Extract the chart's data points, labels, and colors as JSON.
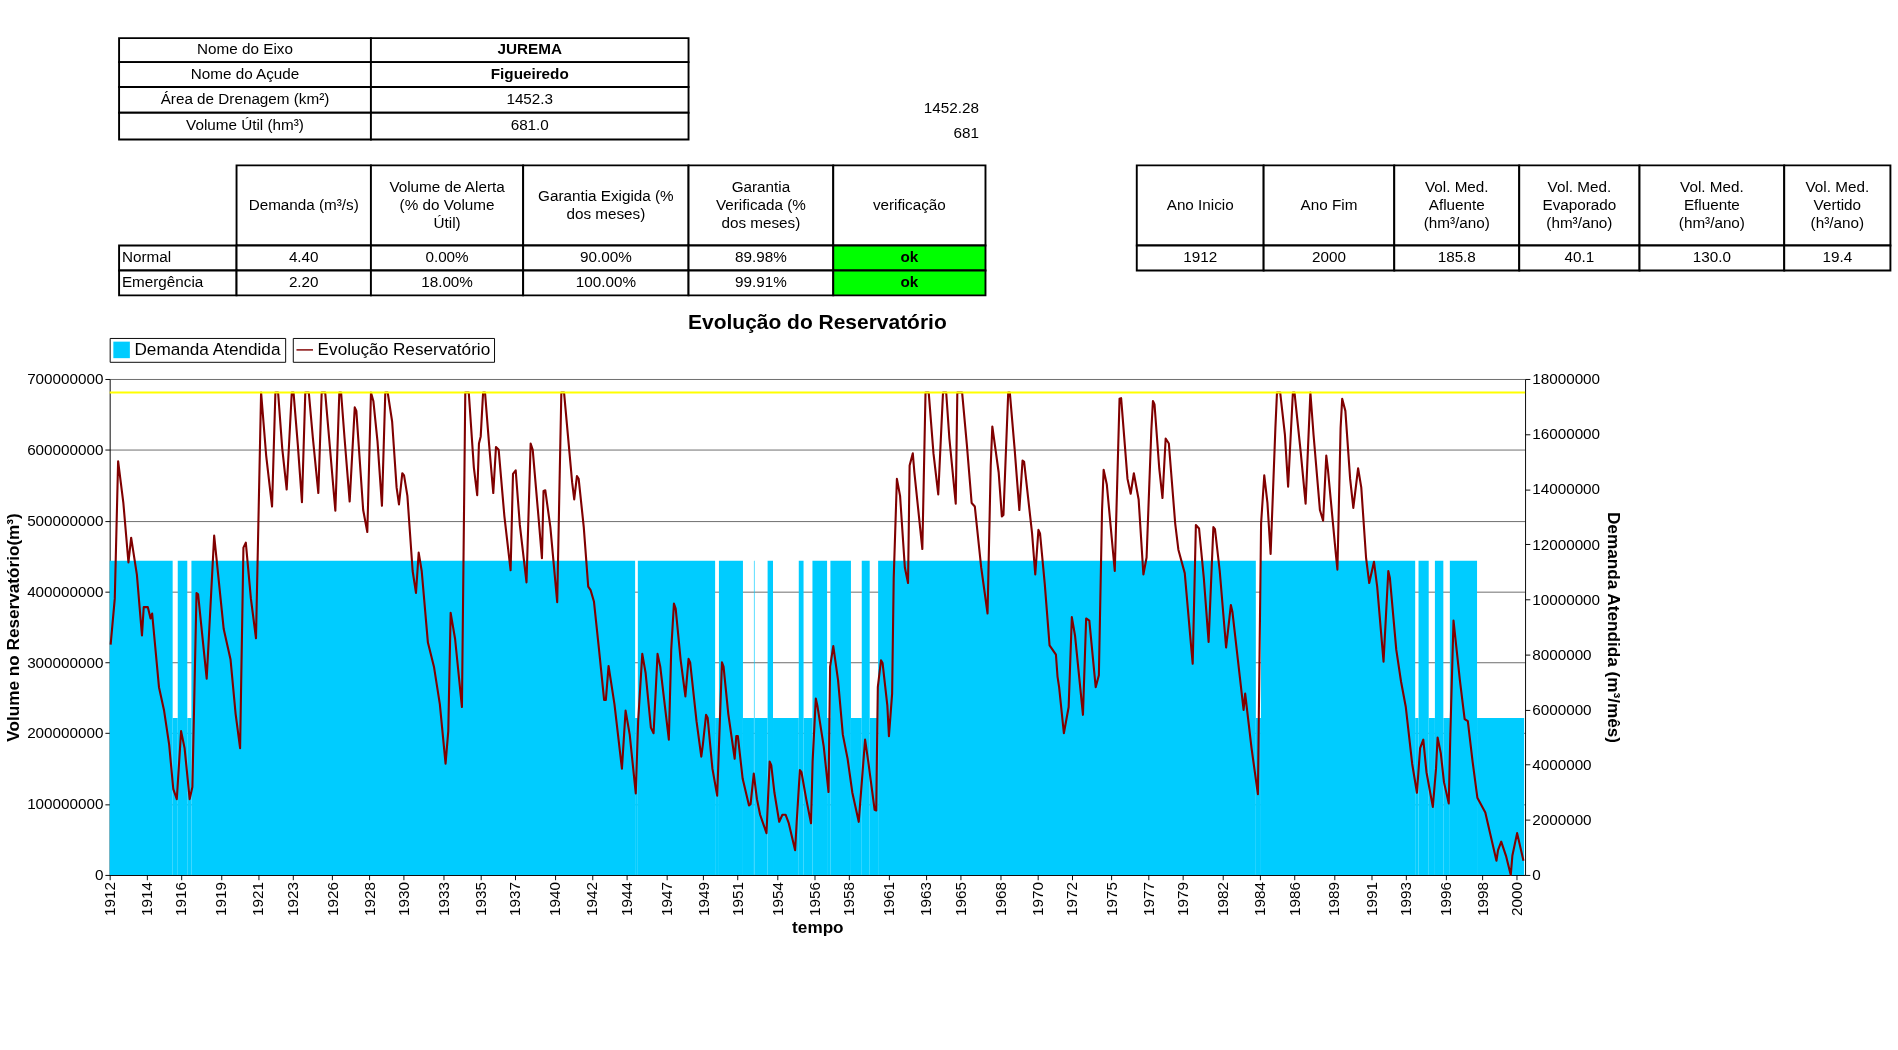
{
  "chart_data": [
    {
      "type": "other",
      "annotations": [
        "Nome do Eixo",
        "JUREMA",
        "Nome do Açude",
        "Figueiredo",
        "Área de Drenagem (km²)",
        "1452.3",
        "Volume Útil (hm³)",
        "681.0",
        "1452.28",
        "681",
        "Demanda (m³/s)",
        "Volume de Alerta (% do Volume Útil)",
        "Garantia Exigida (% dos meses)",
        "Garantia Verificada (% dos meses)",
        "verificação",
        "Normal",
        "4.40",
        "0.00%",
        "90.00%",
        "89.98%",
        "ok",
        "Emergência",
        "2.20",
        "18.00%",
        "100.00%",
        "99.91%",
        "ok",
        "Ano Inicio",
        "Ano Fim",
        "Vol. Med. Afluente (hm³/ano)",
        "Vol. Med. Evaporado (hm³/ano)",
        "Vol. Med. Efluente (hm³/ano)",
        "Vol. Med. Vertido (h³/ano)",
        "1912",
        "2000",
        "185.8",
        "40.1",
        "130.0",
        "19.4"
      ]
    },
    {
      "type": "line",
      "title": "Evolução do Reservatório",
      "xlabel": "tempo",
      "ylabel": "Volume no Reservatório(m³)",
      "y2label": "Demanda Atendida (m³/mês)",
      "xlim": [
        1912,
        2001
      ],
      "xticks": [
        1912,
        {
          "value": 1914.33,
          "label": "1914"
        },
        {
          "value": 1916.49,
          "label": "1916"
        },
        1919,
        {
          "value": 1921.33,
          "label": "1921"
        },
        {
          "value": 1923.49,
          "label": "1923"
        },
        1926,
        {
          "value": 1928.33,
          "label": "1928"
        },
        {
          "value": 1930.49,
          "label": "1930"
        },
        1933,
        {
          "value": 1935.33,
          "label": "1935"
        },
        {
          "value": 1937.49,
          "label": "1937"
        },
        1940,
        {
          "value": 1942.33,
          "label": "1942"
        },
        {
          "value": 1944.49,
          "label": "1944"
        },
        1947,
        {
          "value": 1949.33,
          "label": "1949"
        },
        {
          "value": 1951.49,
          "label": "1951"
        },
        1954,
        {
          "value": 1956.33,
          "label": "1956"
        },
        {
          "value": 1958.49,
          "label": "1958"
        },
        1961,
        {
          "value": 1963.33,
          "label": "1963"
        },
        {
          "value": 1965.49,
          "label": "1965"
        },
        1968,
        {
          "value": 1970.33,
          "label": "1970"
        },
        {
          "value": 1972.49,
          "label": "1972"
        },
        1975,
        {
          "value": 1977.33,
          "label": "1977"
        },
        {
          "value": 1979.49,
          "label": "1979"
        },
        1982,
        {
          "value": 1984.33,
          "label": "1984"
        },
        {
          "value": 1986.49,
          "label": "1986"
        },
        1989,
        {
          "value": 1991.33,
          "label": "1991"
        },
        {
          "value": 1993.49,
          "label": "1993"
        },
        1996,
        {
          "value": 1998.33,
          "label": "1998"
        },
        {
          "value": 2000.49,
          "label": "2000"
        }
      ],
      "ylim": [
        0,
        700000000
      ],
      "yticks": [
        0,
        100000000,
        200000000,
        300000000,
        400000000,
        500000000,
        600000000,
        700000000
      ],
      "y2lim": [
        0,
        18000000
      ],
      "y2ticks": [
        0,
        2000000,
        4000000,
        6000000,
        8000000,
        10000000,
        12000000,
        14000000,
        16000000,
        18000000
      ],
      "grid": "y",
      "legend": "top",
      "ref_lines": [
        {
          "axis": "y",
          "value": 681000000,
          "color": "#ffff00"
        }
      ],
      "series": [
        {
          "name": "Demanda Atendida",
          "type": "area",
          "axis": "y2",
          "color": "#00ccff",
          "x": [
            1912,
            1915.96,
            1916.28,
            1916.88,
            1917.14,
            1945.04,
            1945.21,
            1950.07,
            1950.31,
            1951.82,
            1952.51,
            1952.55,
            1953.37,
            1953.71,
            1955.33,
            1955.63,
            1956.19,
            1957.11,
            1957.32,
            1958.61,
            1959.29,
            1959.79,
            1960.32,
            1984.07,
            1984.39,
            1994.09,
            1994.3,
            1994.94,
            1995.33,
            1995.86,
            1996.27,
            1997.98,
            2000.94
          ],
          "values": [
            11400000,
            5700000,
            11400000,
            5700000,
            11400000,
            5700000,
            11400000,
            5700000,
            11400000,
            5700000,
            11400000,
            5700000,
            11400000,
            5700000,
            11400000,
            5700000,
            11400000,
            5700000,
            11400000,
            5700000,
            11400000,
            5700000,
            11400000,
            5700000,
            11400000,
            5700000,
            11400000,
            5700000,
            11400000,
            5700000,
            11400000,
            5700000,
            5700000
          ]
        },
        {
          "name": "Evolução Reservatório",
          "type": "line",
          "axis": "y",
          "color": "#800000",
          "x": [
            1912.06,
            1912.32,
            1912.53,
            1912.86,
            1913.18,
            1913.35,
            1913.71,
            1914.03,
            1914.14,
            1914.4,
            1914.57,
            1914.67,
            1915.1,
            1915.42,
            1915.74,
            1916,
            1916.22,
            1916.49,
            1916.71,
            1917.03,
            1917.2,
            1917.46,
            1917.56,
            1918.1,
            1918.57,
            1919.17,
            1919.6,
            1919.92,
            1920.2,
            1920.41,
            1920.56,
            1920.88,
            1921.2,
            1921.52,
            1921.84,
            1922.21,
            1922.42,
            1922.59,
            1922.85,
            1923.13,
            1923.45,
            1923.56,
            1923.83,
            1924.09,
            1924.3,
            1924.52,
            1924.78,
            1925.12,
            1925.33,
            1925.55,
            1925.8,
            1926.19,
            1926.44,
            1926.55,
            1926.77,
            1927.09,
            1927.41,
            1927.51,
            1927.94,
            1928.2,
            1928.43,
            1928.58,
            1928.84,
            1929.12,
            1929.33,
            1929.48,
            1929.76,
            1930.04,
            1930.19,
            1930.4,
            1930.51,
            1930.72,
            1931.05,
            1931.26,
            1931.43,
            1931.62,
            1932.01,
            1932.39,
            1932.76,
            1933.12,
            1933.29,
            1933.44,
            1933.72,
            1934.15,
            1934.36,
            1934.58,
            1934.9,
            1935.11,
            1935.22,
            1935.33,
            1935.48,
            1935.6,
            1935.86,
            1936.12,
            1936.29,
            1936.46,
            1936.82,
            1937.21,
            1937.36,
            1937.53,
            1937.79,
            1938.21,
            1938.47,
            1938.6,
            1938.96,
            1939.18,
            1939.28,
            1939.39,
            1939.71,
            1940.14,
            1940.4,
            1940.57,
            1941.08,
            1941.21,
            1941.38,
            1941.49,
            1941.81,
            1942.09,
            1942.24,
            1942.45,
            1942.77,
            1943.09,
            1943.2,
            1943.37,
            1943.74,
            1944.21,
            1944.44,
            1944.7,
            1945.08,
            1945.23,
            1945.49,
            1945.7,
            1946.03,
            1946.2,
            1946.45,
            1946.62,
            1947.16,
            1947.31,
            1947.48,
            1947.59,
            1947.9,
            1948.2,
            1948.4,
            1948.5,
            1948.9,
            1949.2,
            1949.3,
            1949.5,
            1949.6,
            1949.9,
            1950.2,
            1950.5,
            1950.6,
            1950.9,
            1951.3,
            1951.4,
            1951.5,
            1951.8,
            1952.2,
            1952.3,
            1952.5,
            1952.7,
            1952.9,
            1953.3,
            1953.5,
            1953.6,
            1953.8,
            1954.1,
            1954.3,
            1954.5,
            1954.7,
            1955.1,
            1955.2,
            1955.4,
            1955.5,
            1955.8,
            1956.1,
            1956.2,
            1956.4,
            1956.5,
            1956.9,
            1957.2,
            1957.3,
            1957.5,
            1957.8,
            1958.1,
            1958.4,
            1958.7,
            1959.1,
            1959.5,
            1959.7,
            1960.1,
            1960.2,
            1960.3,
            1960.5,
            1960.6,
            1960.9,
            1961,
            1961.2,
            1961.3,
            1961.5,
            1961.7,
            1962,
            1962.2,
            1962.3,
            1962.5,
            1962.6,
            1963.1,
            1963.3,
            1963.5,
            1963.8,
            1964.1,
            1964.4,
            1964.6,
            1964.8,
            1965.2,
            1965.3,
            1965.6,
            1965.9,
            1966.2,
            1966.4,
            1966.8,
            1967.2,
            1967.4,
            1967.5,
            1967.9,
            1968.1,
            1968.2,
            1968.5,
            1968.6,
            1968.9,
            1969.2,
            1969.4,
            1969.5,
            1970,
            1970.2,
            1970.4,
            1970.5,
            1970.8,
            1971.1,
            1971.5,
            1971.6,
            1971.7,
            1972,
            1972.3,
            1972.5,
            1972.7,
            1973.2,
            1973.4,
            1973.6,
            1974,
            1974.2,
            1974.4,
            1974.5,
            1974.7,
            1975.2,
            1975.5,
            1975.6,
            1976,
            1976.2,
            1976.4,
            1976.7,
            1977,
            1977.2,
            1977.5,
            1977.6,
            1977.7,
            1978,
            1978.2,
            1978.4,
            1978.6,
            1979,
            1979.2,
            1979.6,
            1980,
            1980.1,
            1980.3,
            1980.5,
            1980.8,
            1981.1,
            1981.4,
            1981.5,
            1981.8,
            1982.2,
            1982.5,
            1982.6,
            1983.3,
            1983.4,
            1983.8,
            1984.2,
            1984.4,
            1984.6,
            1984.8,
            1985,
            1985.3,
            1985.4,
            1985.6,
            1985.9,
            1986.1,
            1986.4,
            1986.5,
            1986.9,
            1987.2,
            1987.5,
            1987.7,
            1988.1,
            1988.3,
            1988.5,
            1988.6,
            1989.1,
            1989.2,
            1989.4,
            1989.5,
            1989.7,
            1990,
            1990.2,
            1990.5,
            1990.7,
            1991,
            1991.2,
            1991.5,
            1991.7,
            1992.1,
            1992.4,
            1992.5,
            1992.9,
            1993.2,
            1993.5,
            1993.9,
            1994.2,
            1994.4,
            1994.6,
            1994.8,
            1995.2,
            1995.4,
            1995.5,
            1995.7,
            1995.9,
            1996.2,
            1996.3,
            1996.5,
            1996.9,
            1997.2,
            1997.4,
            1997.7,
            1998,
            1998.5,
            1998.8,
            1999.2,
            1999.3,
            1999.5,
            1999.8,
            2000.1,
            2000.2,
            2000.5,
            2000.9
          ],
          "values": [
            325000000,
            390000000,
            584000000,
            525000000,
            441000000,
            476000000,
            424000000,
            338000000,
            378000000,
            378000000,
            362000000,
            369000000,
            265000000,
            232000000,
            184000000,
            121000000,
            107000000,
            203000000,
            179000000,
            107000000,
            124000000,
            398000000,
            396000000,
            277000000,
            479000000,
            347000000,
            304000000,
            227000000,
            179000000,
            462000000,
            469000000,
            390000000,
            334000000,
            681000000,
            592000000,
            520000000,
            681000000,
            681000000,
            602000000,
            544000000,
            681000000,
            681000000,
            607000000,
            526000000,
            681000000,
            681000000,
            616000000,
            539000000,
            681000000,
            681000000,
            616000000,
            514000000,
            681000000,
            681000000,
            616000000,
            527000000,
            660000000,
            655000000,
            515000000,
            484000000,
            681000000,
            669000000,
            612000000,
            521000000,
            681000000,
            681000000,
            640000000,
            547000000,
            523000000,
            567000000,
            564000000,
            535000000,
            429000000,
            398000000,
            455000000,
            429000000,
            328000000,
            294000000,
            241000000,
            157000000,
            203000000,
            370000000,
            333000000,
            237000000,
            681000000,
            681000000,
            575000000,
            536000000,
            609000000,
            619000000,
            681000000,
            681000000,
            607000000,
            539000000,
            604000000,
            600000000,
            506000000,
            430000000,
            566000000,
            571000000,
            494000000,
            413000000,
            609000000,
            600000000,
            506000000,
            447000000,
            542000000,
            543000000,
            491000000,
            385000000,
            681000000,
            681000000,
            554000000,
            530000000,
            563000000,
            559000000,
            491000000,
            407000000,
            402000000,
            386000000,
            318000000,
            247000000,
            247000000,
            295000000,
            241000000,
            150000000,
            232000000,
            198000000,
            115000000,
            217000000,
            312000000,
            285000000,
            208000000,
            200000000,
            312000000,
            294000000,
            191000000,
            318000000,
            383000000,
            376000000,
            304000000,
            252000000,
            305000000,
            300000000,
            217000000,
            167000000,
            184000000,
            226000000,
            222000000,
            150000000,
            112000000,
            300000000,
            294000000,
            227000000,
            164000000,
            196000000,
            196000000,
            136000000,
            98000000,
            100000000,
            143000000,
            107000000,
            85000000,
            59000000,
            160000000,
            155000000,
            116000000,
            75000000,
            85000000,
            85000000,
            73000000,
            35000000,
            75000000,
            148000000,
            145000000,
            107000000,
            73000000,
            160000000,
            249000000,
            239000000,
            181000000,
            117000000,
            294000000,
            323000000,
            275000000,
            198000000,
            164000000,
            116000000,
            75000000,
            191000000,
            160000000,
            92000000,
            91000000,
            265000000,
            303000000,
            299000000,
            239000000,
            196000000,
            256000000,
            419000000,
            559000000,
            535000000,
            434000000,
            412000000,
            578000000,
            595000000,
            568000000,
            460000000,
            681000000,
            681000000,
            595000000,
            537000000,
            681000000,
            681000000,
            616000000,
            524000000,
            681000000,
            681000000,
            607000000,
            525000000,
            520000000,
            434000000,
            369000000,
            578000000,
            633000000,
            568000000,
            506000000,
            508000000,
            681000000,
            681000000,
            602000000,
            515000000,
            585000000,
            583000000,
            482000000,
            424000000,
            487000000,
            482000000,
            410000000,
            324000000,
            311000000,
            280000000,
            265000000,
            200000000,
            237000000,
            364000000,
            338000000,
            226000000,
            362000000,
            359000000,
            265000000,
            282000000,
            515000000,
            572000000,
            551000000,
            429000000,
            672000000,
            673000000,
            559000000,
            538000000,
            567000000,
            530000000,
            424000000,
            448000000,
            628000000,
            669000000,
            664000000,
            573000000,
            532000000,
            616000000,
            609000000,
            496000000,
            459000000,
            426000000,
            323000000,
            298000000,
            494000000,
            489000000,
            419000000,
            329000000,
            491000000,
            488000000,
            429000000,
            321000000,
            381000000,
            371000000,
            233000000,
            256000000,
            179000000,
            114000000,
            496000000,
            564000000,
            525000000,
            453000000,
            631000000,
            681000000,
            681000000,
            621000000,
            548000000,
            681000000,
            681000000,
            595000000,
            524000000,
            681000000,
            621000000,
            515000000,
            500000000,
            592000000,
            573000000,
            453000000,
            431000000,
            631000000,
            672000000,
            655000000,
            559000000,
            518000000,
            574000000,
            547000000,
            448000000,
            412000000,
            442000000,
            407000000,
            301000000,
            429000000,
            419000000,
            318000000,
            273000000,
            237000000,
            157000000,
            116000000,
            179000000,
            191000000,
            145000000,
            96000000,
            150000000,
            194000000,
            172000000,
            131000000,
            101000000,
            198000000,
            359000000,
            275000000,
            220000000,
            217000000,
            160000000,
            109000000,
            88000000,
            59000000,
            20000000,
            35000000,
            47000000,
            27000000,
            0,
            27000000,
            59000000,
            20000000
          ]
        }
      ]
    }
  ]
}
